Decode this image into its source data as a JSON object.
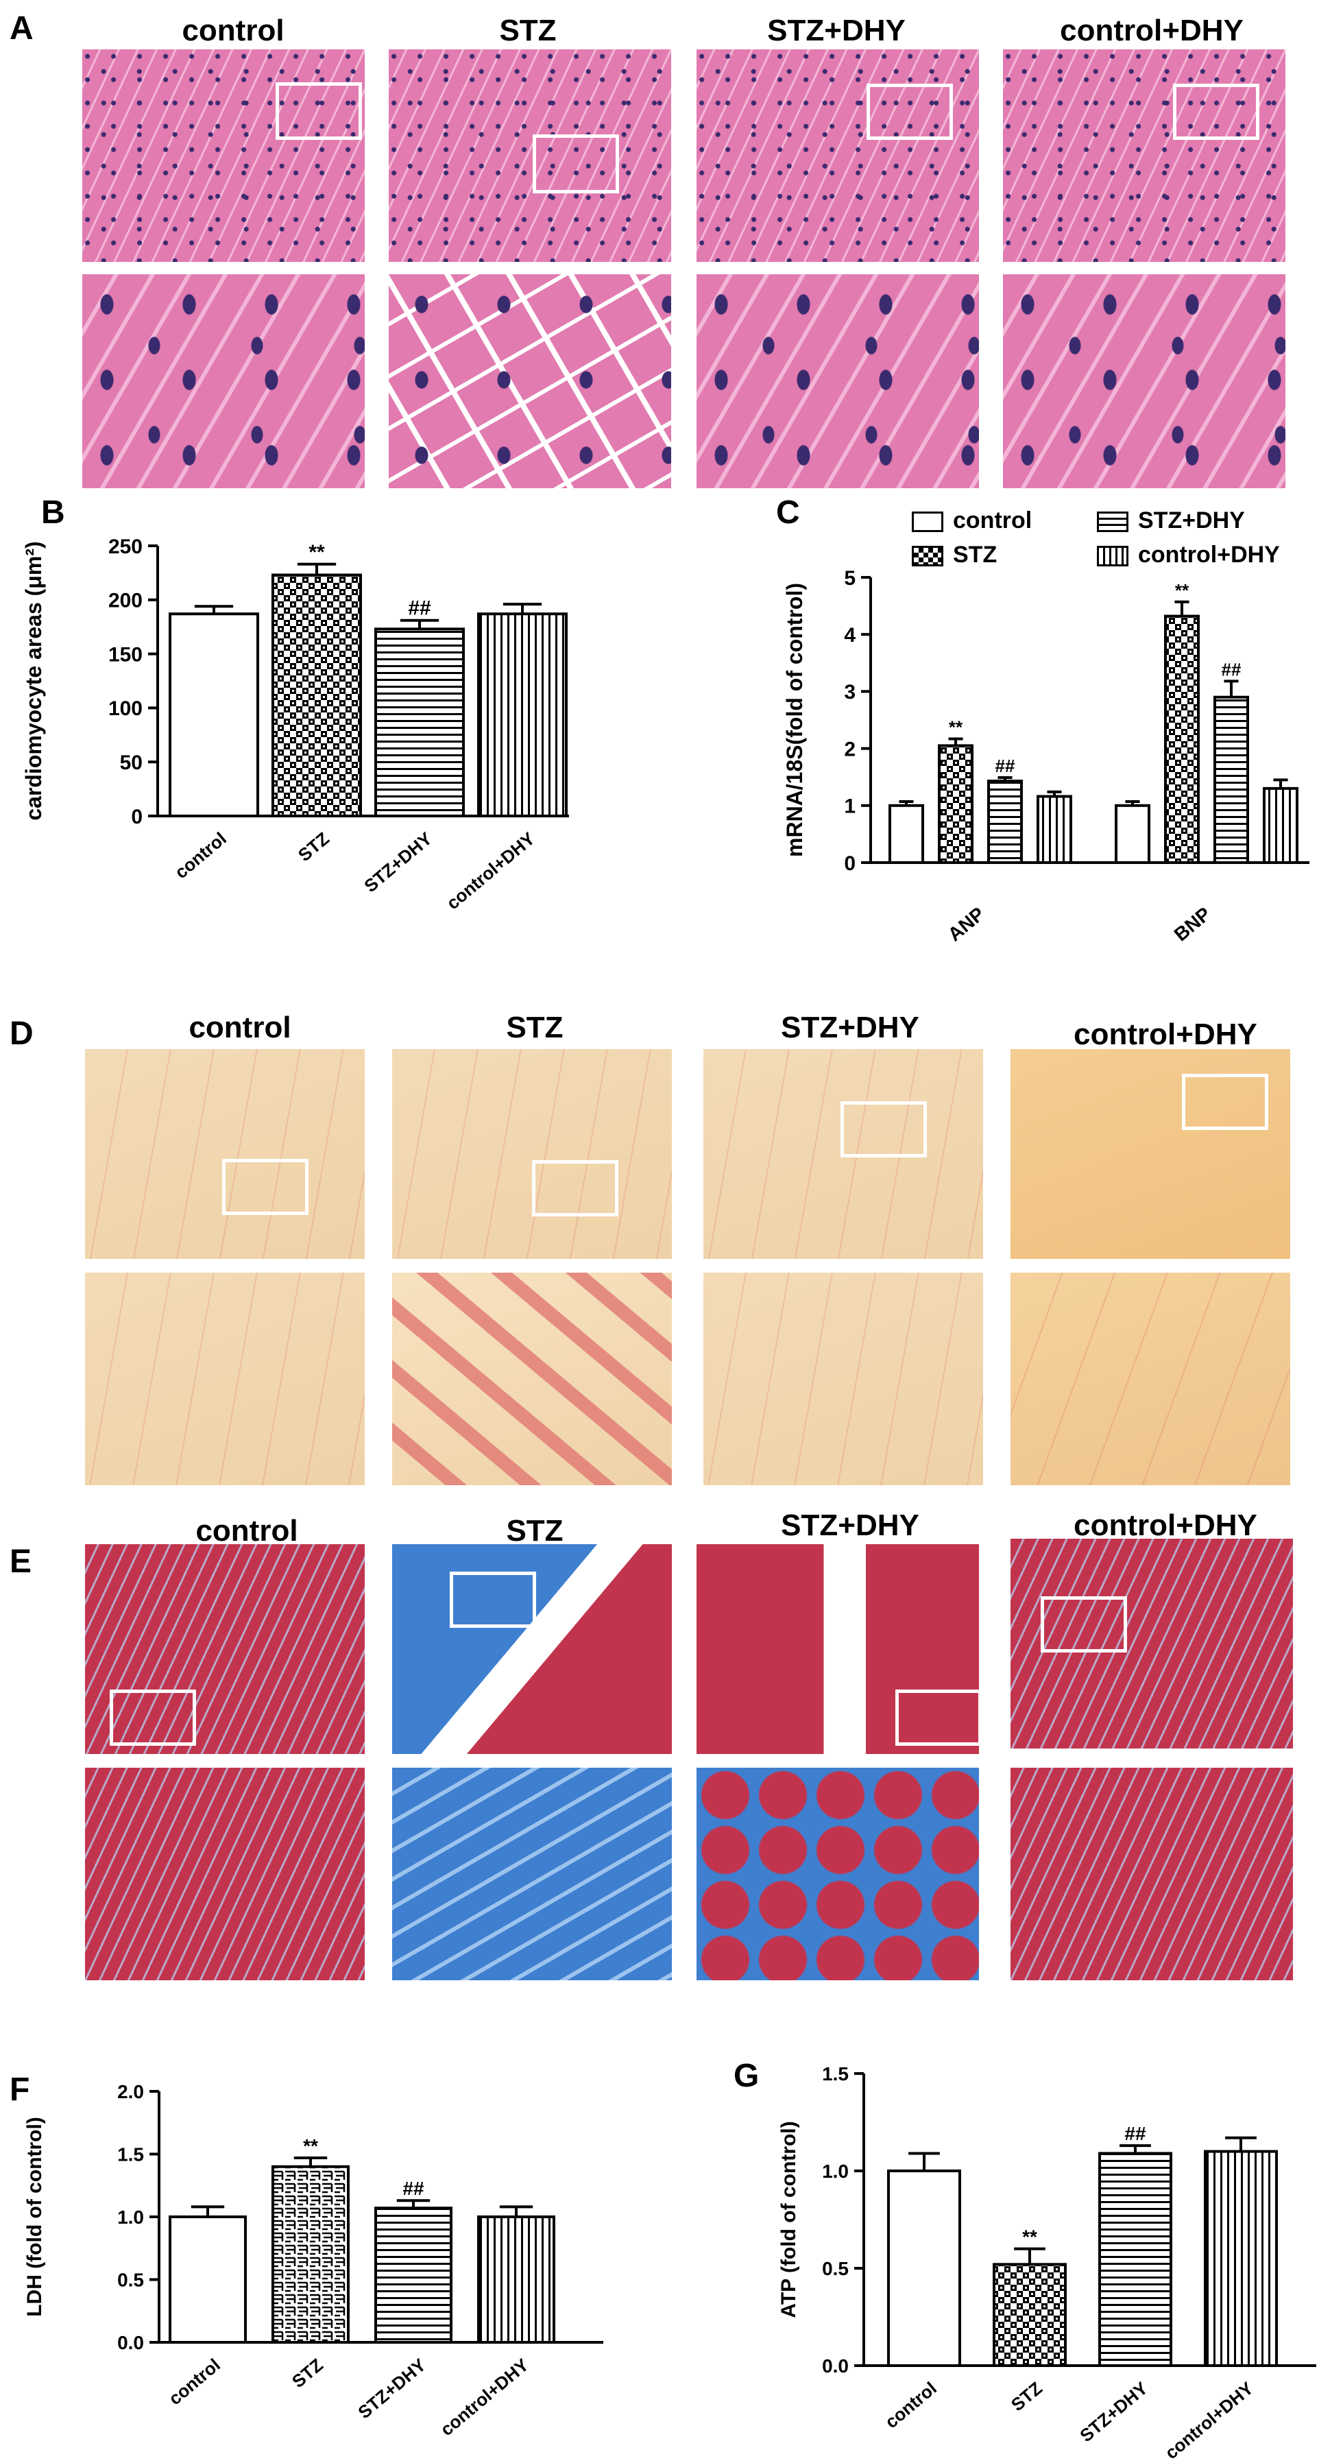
{
  "panel_letters": [
    "A",
    "B",
    "C",
    "D",
    "E",
    "F",
    "G"
  ],
  "groups": [
    "control",
    "STZ",
    "STZ+DHY",
    "control+DHY"
  ],
  "colors": {
    "he_pink": "#e27bb0",
    "he_pink_light": "#f3b5d6",
    "he_nuclei": "#3a2a6e",
    "sirius_bg": "#efd2a7",
    "sirius_red": "#e0716e",
    "masson_red": "#c2344d",
    "masson_blue": "#3f7fd0",
    "white_box": "#ffffff"
  },
  "chart_data": [
    {
      "panel": "B",
      "type": "bar",
      "categories": [
        "control",
        "STZ",
        "STZ+DHY",
        "control+DHY"
      ],
      "values": [
        187,
        223,
        173,
        187
      ],
      "errors": [
        7,
        10,
        8,
        9
      ],
      "significance": [
        "",
        "**",
        "##",
        ""
      ],
      "ylabel": "cardiomyocyte areas (μm²)",
      "ylim": [
        0,
        250
      ],
      "yticks": [
        0,
        50,
        100,
        150,
        200,
        250
      ],
      "patterns": [
        "open",
        "checker",
        "hstripe",
        "vstripe"
      ]
    },
    {
      "panel": "C",
      "type": "bar",
      "categories": [
        "ANP",
        "BNP"
      ],
      "series": [
        {
          "name": "control",
          "values": [
            1.0,
            1.0
          ],
          "errors": [
            0.07,
            0.07
          ],
          "significance": [
            "",
            ""
          ],
          "pattern": "open"
        },
        {
          "name": "STZ",
          "values": [
            2.05,
            4.32
          ],
          "errors": [
            0.12,
            0.25
          ],
          "significance": [
            "**",
            "**"
          ],
          "pattern": "checker"
        },
        {
          "name": "STZ+DHY",
          "values": [
            1.43,
            2.9
          ],
          "errors": [
            0.06,
            0.28
          ],
          "significance": [
            "##",
            "##"
          ],
          "pattern": "hstripe"
        },
        {
          "name": "control+DHY",
          "values": [
            1.16,
            1.3
          ],
          "errors": [
            0.08,
            0.15
          ],
          "significance": [
            "",
            ""
          ],
          "pattern": "vstripe"
        }
      ],
      "ylabel": "mRNA/18S(fold of control)",
      "ylim": [
        0,
        5
      ],
      "yticks": [
        0,
        1,
        2,
        3,
        4,
        5
      ]
    },
    {
      "panel": "F",
      "type": "bar",
      "categories": [
        "control",
        "STZ",
        "STZ+DHY",
        "control+DHY"
      ],
      "values": [
        1.0,
        1.4,
        1.07,
        1.0
      ],
      "errors": [
        0.08,
        0.07,
        0.06,
        0.08
      ],
      "significance": [
        "",
        "**",
        "##",
        ""
      ],
      "ylabel": "LDH (fold of control)",
      "ylim": [
        0,
        2.0
      ],
      "yticks": [
        "0.0",
        "0.5",
        "1.0",
        "1.5",
        "2.0"
      ],
      "patterns": [
        "open",
        "arrow",
        "hstripe",
        "vstripe"
      ]
    },
    {
      "panel": "G",
      "type": "bar",
      "categories": [
        "control",
        "STZ",
        "STZ+DHY",
        "control+DHY"
      ],
      "values": [
        1.0,
        0.52,
        1.09,
        1.1
      ],
      "errors": [
        0.09,
        0.08,
        0.04,
        0.07
      ],
      "significance": [
        "",
        "**",
        "##",
        ""
      ],
      "ylabel": "ATP (fold of control)",
      "ylim": [
        0,
        1.5
      ],
      "yticks": [
        "0.0",
        "0.5",
        "1.0",
        "1.5"
      ],
      "patterns": [
        "open",
        "checker",
        "hstripe",
        "vstripe"
      ]
    }
  ]
}
